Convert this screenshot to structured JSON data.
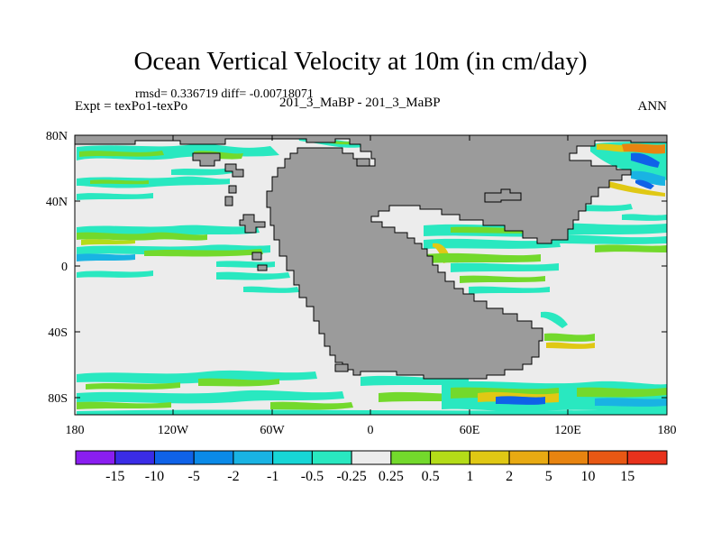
{
  "title": "Ocean Vertical Velocity at 10m (in cm/day)",
  "stats": "rmsd= 0.336719 diff= -0.00718071",
  "expt": "Expt = texPo1-texPo",
  "case": "201_3_MaBP - 201_3_MaBP",
  "season": "ANN",
  "lat_labels": [
    "80N",
    "40N",
    "0",
    "40S",
    "80S"
  ],
  "lon_labels": [
    "180",
    "120W",
    "60W",
    "0",
    "60E",
    "120E",
    "180"
  ],
  "colorbar": {
    "colors": [
      "#8a1ef0",
      "#3a2ce6",
      "#0f62e8",
      "#0a8ae8",
      "#19b3e3",
      "#17d6d6",
      "#29e8c0",
      "#ececec",
      "#73d92c",
      "#b4dc18",
      "#e0c814",
      "#e8aa12",
      "#e88410",
      "#e85814",
      "#e8321c"
    ],
    "labels": [
      "-15",
      "-10",
      "-5",
      "-2",
      "-1",
      "-0.5",
      "-0.25",
      "0.25",
      "0.5",
      "1",
      "2",
      "5",
      "10",
      "15"
    ]
  },
  "colors": {
    "land": "#9b9b9b",
    "ocean_background": "#ececec"
  }
}
